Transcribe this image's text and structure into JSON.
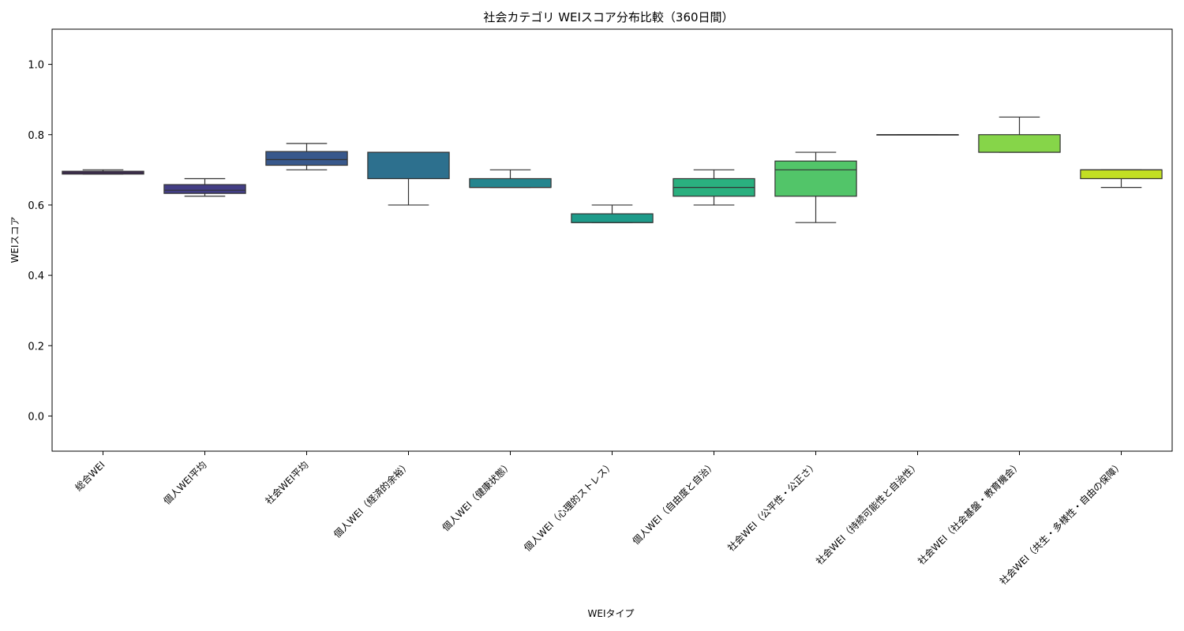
{
  "chart_data": {
    "type": "box",
    "title": "社会カテゴリ WEIスコア分布比較（360日間）",
    "xlabel": "WEIタイプ",
    "ylabel": "WEIスコア",
    "ylim": [
      -0.1,
      1.1
    ],
    "yticks": [
      "0.0",
      "0.2",
      "0.4",
      "0.6",
      "0.8",
      "1.0"
    ],
    "grid": false,
    "categories": [
      "総合WEI",
      "個人WEI平均",
      "社会WEI平均",
      "個人WEI（経済的余裕）",
      "個人WEI（健康状態）",
      "個人WEI（心理的ストレス）",
      "個人WEI（自由度と自治）",
      "社会WEI（公平性・公正さ）",
      "社会WEI（持続可能性と自治性）",
      "社会WEI（社会基盤・教育機会）",
      "社会WEI（共生・多様性・自由の保障）"
    ],
    "boxes": [
      {
        "whislo": 0.688,
        "q1": 0.688,
        "med": 0.692,
        "q3": 0.696,
        "whishi": 0.7,
        "color": "#482173"
      },
      {
        "whislo": 0.625,
        "q1": 0.633,
        "med": 0.642,
        "q3": 0.658,
        "whishi": 0.675,
        "color": "#433e85"
      },
      {
        "whislo": 0.7,
        "q1": 0.713,
        "med": 0.729,
        "q3": 0.752,
        "whishi": 0.775,
        "color": "#38588c"
      },
      {
        "whislo": 0.6,
        "q1": 0.675,
        "med": 0.75,
        "q3": 0.75,
        "whishi": 0.75,
        "color": "#2d708e"
      },
      {
        "whislo": 0.65,
        "q1": 0.65,
        "med": 0.65,
        "q3": 0.675,
        "whishi": 0.7,
        "color": "#25858e"
      },
      {
        "whislo": 0.55,
        "q1": 0.55,
        "med": 0.55,
        "q3": 0.575,
        "whishi": 0.6,
        "color": "#1e9b8a"
      },
      {
        "whislo": 0.6,
        "q1": 0.625,
        "med": 0.65,
        "q3": 0.675,
        "whishi": 0.7,
        "color": "#2ab07f"
      },
      {
        "whislo": 0.55,
        "q1": 0.625,
        "med": 0.7,
        "q3": 0.725,
        "whishi": 0.75,
        "color": "#52c569"
      },
      {
        "whislo": 0.8,
        "q1": 0.8,
        "med": 0.8,
        "q3": 0.8,
        "whishi": 0.8,
        "color": "#86d549"
      },
      {
        "whislo": 0.75,
        "q1": 0.75,
        "med": 0.75,
        "q3": 0.8,
        "whishi": 0.85,
        "color": "#86d549"
      },
      {
        "whislo": 0.65,
        "q1": 0.675,
        "med": 0.7,
        "q3": 0.7,
        "whishi": 0.7,
        "color": "#c2df23"
      }
    ]
  }
}
